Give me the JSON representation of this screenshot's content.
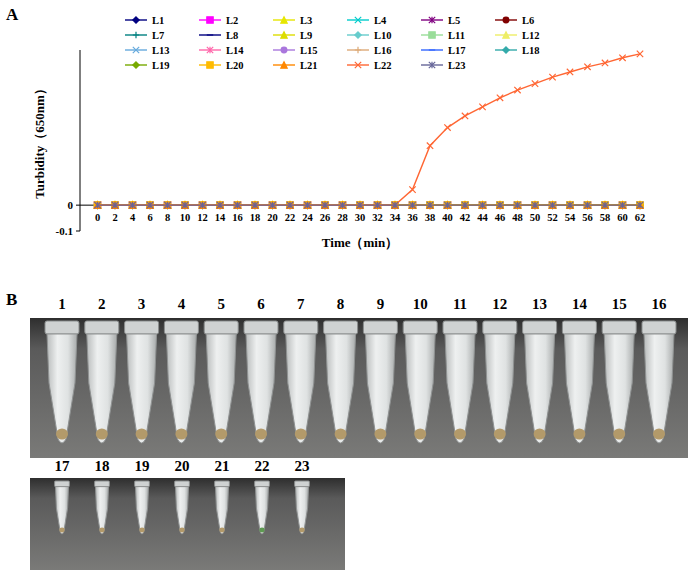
{
  "panel_labels": [
    "A",
    "B"
  ],
  "chart_data": {
    "type": "line",
    "x_label": "Time（min）",
    "y_label": "Turbidity（650nm）",
    "x": [
      0,
      2,
      4,
      6,
      8,
      10,
      12,
      14,
      16,
      18,
      20,
      22,
      24,
      26,
      28,
      30,
      32,
      34,
      36,
      38,
      40,
      42,
      44,
      46,
      48,
      50,
      52,
      54,
      56,
      58,
      60,
      62
    ],
    "xlim": [
      -2,
      62
    ],
    "xticks": [
      0,
      2,
      4,
      6,
      8,
      10,
      12,
      14,
      16,
      18,
      20,
      22,
      24,
      26,
      28,
      30,
      32,
      34,
      36,
      38,
      40,
      42,
      44,
      46,
      48,
      50,
      52,
      54,
      56,
      58,
      60,
      62
    ],
    "ylim": [
      -0.1,
      0.6
    ],
    "yticks": [
      -0.1,
      0
    ],
    "grid": false,
    "legend": "top",
    "series": [
      {
        "name": "L1",
        "color": "#000080",
        "marker": "diamond",
        "values": [
          0,
          0,
          0,
          0,
          0,
          0,
          0,
          0,
          0,
          0,
          0,
          0,
          0,
          0,
          0,
          0,
          0,
          0,
          0,
          0,
          0,
          0,
          0,
          0,
          0,
          0,
          0,
          0,
          0,
          0,
          0,
          0
        ]
      },
      {
        "name": "L2",
        "color": "#ff00ff",
        "marker": "square",
        "values": [
          0,
          0,
          0,
          0,
          0,
          0,
          0,
          0,
          0,
          0,
          0,
          0,
          0,
          0,
          0,
          0,
          0,
          0,
          0,
          0,
          0,
          0,
          0,
          0,
          0,
          0,
          0,
          0,
          0,
          0,
          0,
          0
        ]
      },
      {
        "name": "L3",
        "color": "#e6e600",
        "marker": "triangle",
        "values": [
          0,
          0,
          0,
          0,
          0,
          0,
          0,
          0,
          0,
          0,
          0,
          0,
          0,
          0,
          0,
          0,
          0,
          0,
          0,
          0,
          0,
          0,
          0,
          0,
          0,
          0,
          0,
          0,
          0,
          0,
          0,
          0
        ]
      },
      {
        "name": "L4",
        "color": "#00cccc",
        "marker": "x",
        "values": [
          0,
          0,
          0,
          0,
          0,
          0,
          0,
          0,
          0,
          0,
          0,
          0,
          0,
          0,
          0,
          0,
          0,
          0,
          0,
          0,
          0,
          0,
          0,
          0,
          0,
          0,
          0,
          0,
          0,
          0,
          0,
          0
        ]
      },
      {
        "name": "L5",
        "color": "#800080",
        "marker": "star",
        "values": [
          0,
          0,
          0,
          0,
          0,
          0,
          0,
          0,
          0,
          0,
          0,
          0,
          0,
          0,
          0,
          0,
          0,
          0,
          0,
          0,
          0,
          0,
          0,
          0,
          0,
          0,
          0,
          0,
          0,
          0,
          0,
          0
        ]
      },
      {
        "name": "L6",
        "color": "#800000",
        "marker": "circle",
        "values": [
          0,
          0,
          0,
          0,
          0,
          0,
          0,
          0,
          0,
          0,
          0,
          0,
          0,
          0,
          0,
          0,
          0,
          0,
          0,
          0,
          0,
          0,
          0,
          0,
          0,
          0,
          0,
          0,
          0,
          0,
          0,
          0
        ]
      },
      {
        "name": "L7",
        "color": "#008080",
        "marker": "plus",
        "values": [
          0,
          0,
          0,
          0,
          0,
          0,
          0,
          0,
          0,
          0,
          0,
          0,
          0,
          0,
          0,
          0,
          0,
          0,
          0,
          0,
          0,
          0,
          0,
          0,
          0,
          0,
          0,
          0,
          0,
          0,
          0,
          0
        ]
      },
      {
        "name": "L8",
        "color": "#000080",
        "marker": "dash",
        "values": [
          0,
          0,
          0,
          0,
          0,
          0,
          0,
          0,
          0,
          0,
          0,
          0,
          0,
          0,
          0,
          0,
          0,
          0,
          0,
          0,
          0,
          0,
          0,
          0,
          0,
          0,
          0,
          0,
          0,
          0,
          0,
          0
        ]
      },
      {
        "name": "L9",
        "color": "#dddd00",
        "marker": "triangle",
        "values": [
          0,
          0,
          0,
          0,
          0,
          0,
          0,
          0,
          0,
          0,
          0,
          0,
          0,
          0,
          0,
          0,
          0,
          0,
          0,
          0,
          0,
          0,
          0,
          0,
          0,
          0,
          0,
          0,
          0,
          0,
          0,
          0
        ]
      },
      {
        "name": "L10",
        "color": "#66cccc",
        "marker": "diamond",
        "values": [
          0,
          0,
          0,
          0,
          0,
          0,
          0,
          0,
          0,
          0,
          0,
          0,
          0,
          0,
          0,
          0,
          0,
          0,
          0,
          0,
          0,
          0,
          0,
          0,
          0,
          0,
          0,
          0,
          0,
          0,
          0,
          0
        ]
      },
      {
        "name": "L11",
        "color": "#99dd99",
        "marker": "square",
        "values": [
          0,
          0,
          0,
          0,
          0,
          0,
          0,
          0,
          0,
          0,
          0,
          0,
          0,
          0,
          0,
          0,
          0,
          0,
          0,
          0,
          0,
          0,
          0,
          0,
          0,
          0,
          0,
          0,
          0,
          0,
          0,
          0
        ]
      },
      {
        "name": "L12",
        "color": "#eeee66",
        "marker": "triangle",
        "values": [
          0,
          0,
          0,
          0,
          0,
          0,
          0,
          0,
          0,
          0,
          0,
          0,
          0,
          0,
          0,
          0,
          0,
          0,
          0,
          0,
          0,
          0,
          0,
          0,
          0,
          0,
          0,
          0,
          0,
          0,
          0,
          0
        ]
      },
      {
        "name": "L13",
        "color": "#66aadd",
        "marker": "x",
        "values": [
          0,
          0,
          0,
          0,
          0,
          0,
          0,
          0,
          0,
          0,
          0,
          0,
          0,
          0,
          0,
          0,
          0,
          0,
          0,
          0,
          0,
          0,
          0,
          0,
          0,
          0,
          0,
          0,
          0,
          0,
          0,
          0
        ]
      },
      {
        "name": "L14",
        "color": "#ff66aa",
        "marker": "star",
        "values": [
          0,
          0,
          0,
          0,
          0,
          0,
          0,
          0,
          0,
          0,
          0,
          0,
          0,
          0,
          0,
          0,
          0,
          0,
          0,
          0,
          0,
          0,
          0,
          0,
          0,
          0,
          0,
          0,
          0,
          0,
          0,
          0
        ]
      },
      {
        "name": "L15",
        "color": "#aa77dd",
        "marker": "circle",
        "values": [
          0,
          0,
          0,
          0,
          0,
          0,
          0,
          0,
          0,
          0,
          0,
          0,
          0,
          0,
          0,
          0,
          0,
          0,
          0,
          0,
          0,
          0,
          0,
          0,
          0,
          0,
          0,
          0,
          0,
          0,
          0,
          0
        ]
      },
      {
        "name": "L16",
        "color": "#ddaa77",
        "marker": "plus",
        "values": [
          0,
          0,
          0,
          0,
          0,
          0,
          0,
          0,
          0,
          0,
          0,
          0,
          0,
          0,
          0,
          0,
          0,
          0,
          0,
          0,
          0,
          0,
          0,
          0,
          0,
          0,
          0,
          0,
          0,
          0,
          0,
          0
        ]
      },
      {
        "name": "L17",
        "color": "#3366ff",
        "marker": "dash",
        "values": [
          0,
          0,
          0,
          0,
          0,
          0,
          0,
          0,
          0,
          0,
          0,
          0,
          0,
          0,
          0,
          0,
          0,
          0,
          0,
          0,
          0,
          0,
          0,
          0,
          0,
          0,
          0,
          0,
          0,
          0,
          0,
          0
        ]
      },
      {
        "name": "L18",
        "color": "#33aaaa",
        "marker": "diamond",
        "values": [
          0,
          0,
          0,
          0,
          0,
          0,
          0,
          0,
          0,
          0,
          0,
          0,
          0,
          0,
          0,
          0,
          0,
          0,
          0,
          0,
          0,
          0,
          0,
          0,
          0,
          0,
          0,
          0,
          0,
          0,
          0,
          0
        ]
      },
      {
        "name": "L19",
        "color": "#77aa00",
        "marker": "diamond",
        "values": [
          0,
          0,
          0,
          0,
          0,
          0,
          0,
          0,
          0,
          0,
          0,
          0,
          0,
          0,
          0,
          0,
          0,
          0,
          0,
          0,
          0,
          0,
          0,
          0,
          0,
          0,
          0,
          0,
          0,
          0,
          0,
          0
        ]
      },
      {
        "name": "L20",
        "color": "#ffbb00",
        "marker": "square",
        "values": [
          0,
          0,
          0,
          0,
          0,
          0,
          0,
          0,
          0,
          0,
          0,
          0,
          0,
          0,
          0,
          0,
          0,
          0,
          0,
          0,
          0,
          0,
          0,
          0,
          0,
          0,
          0,
          0,
          0,
          0,
          0,
          0
        ]
      },
      {
        "name": "L21",
        "color": "#ff8800",
        "marker": "triangle",
        "values": [
          0,
          0,
          0,
          0,
          0,
          0,
          0,
          0,
          0,
          0,
          0,
          0,
          0,
          0,
          0,
          0,
          0,
          0,
          0,
          0,
          0,
          0,
          0,
          0,
          0,
          0,
          0,
          0,
          0,
          0,
          0,
          0
        ]
      },
      {
        "name": "L22",
        "color": "#ff6633",
        "marker": "x",
        "values": [
          0,
          0,
          0,
          0,
          0,
          0,
          0,
          0,
          0,
          0,
          0,
          0,
          0,
          0,
          0,
          0,
          0,
          0,
          0.06,
          0.23,
          0.3,
          0.345,
          0.38,
          0.415,
          0.445,
          0.47,
          0.495,
          0.515,
          0.535,
          0.55,
          0.57,
          0.585
        ]
      },
      {
        "name": "L23",
        "color": "#666699",
        "marker": "star",
        "values": [
          0,
          0,
          0,
          0,
          0,
          0,
          0,
          0,
          0,
          0,
          0,
          0,
          0,
          0,
          0,
          0,
          0,
          0,
          0,
          0,
          0,
          0,
          0,
          0,
          0,
          0,
          0,
          0,
          0,
          0,
          0,
          0
        ]
      }
    ]
  },
  "tubes": {
    "labels": [
      "1",
      "2",
      "3",
      "4",
      "5",
      "6",
      "7",
      "8",
      "9",
      "10",
      "11",
      "12",
      "13",
      "14",
      "15",
      "16",
      "17",
      "18",
      "19",
      "20",
      "21",
      "22",
      "23"
    ],
    "colors": [
      "#b39a6a",
      "#b39a6a",
      "#b39a6a",
      "#b39a6a",
      "#b39a6a",
      "#b39a6a",
      "#b39a6a",
      "#b39a6a",
      "#b39a6a",
      "#b39a6a",
      "#b39a6a",
      "#b39a6a",
      "#b39a6a",
      "#b39a6a",
      "#b39a6a",
      "#b39a6a",
      "#b39a6a",
      "#b39a6a",
      "#b39a6a",
      "#b39a6a",
      "#b39a6a",
      "#5e9a52",
      "#b39a6a"
    ]
  }
}
